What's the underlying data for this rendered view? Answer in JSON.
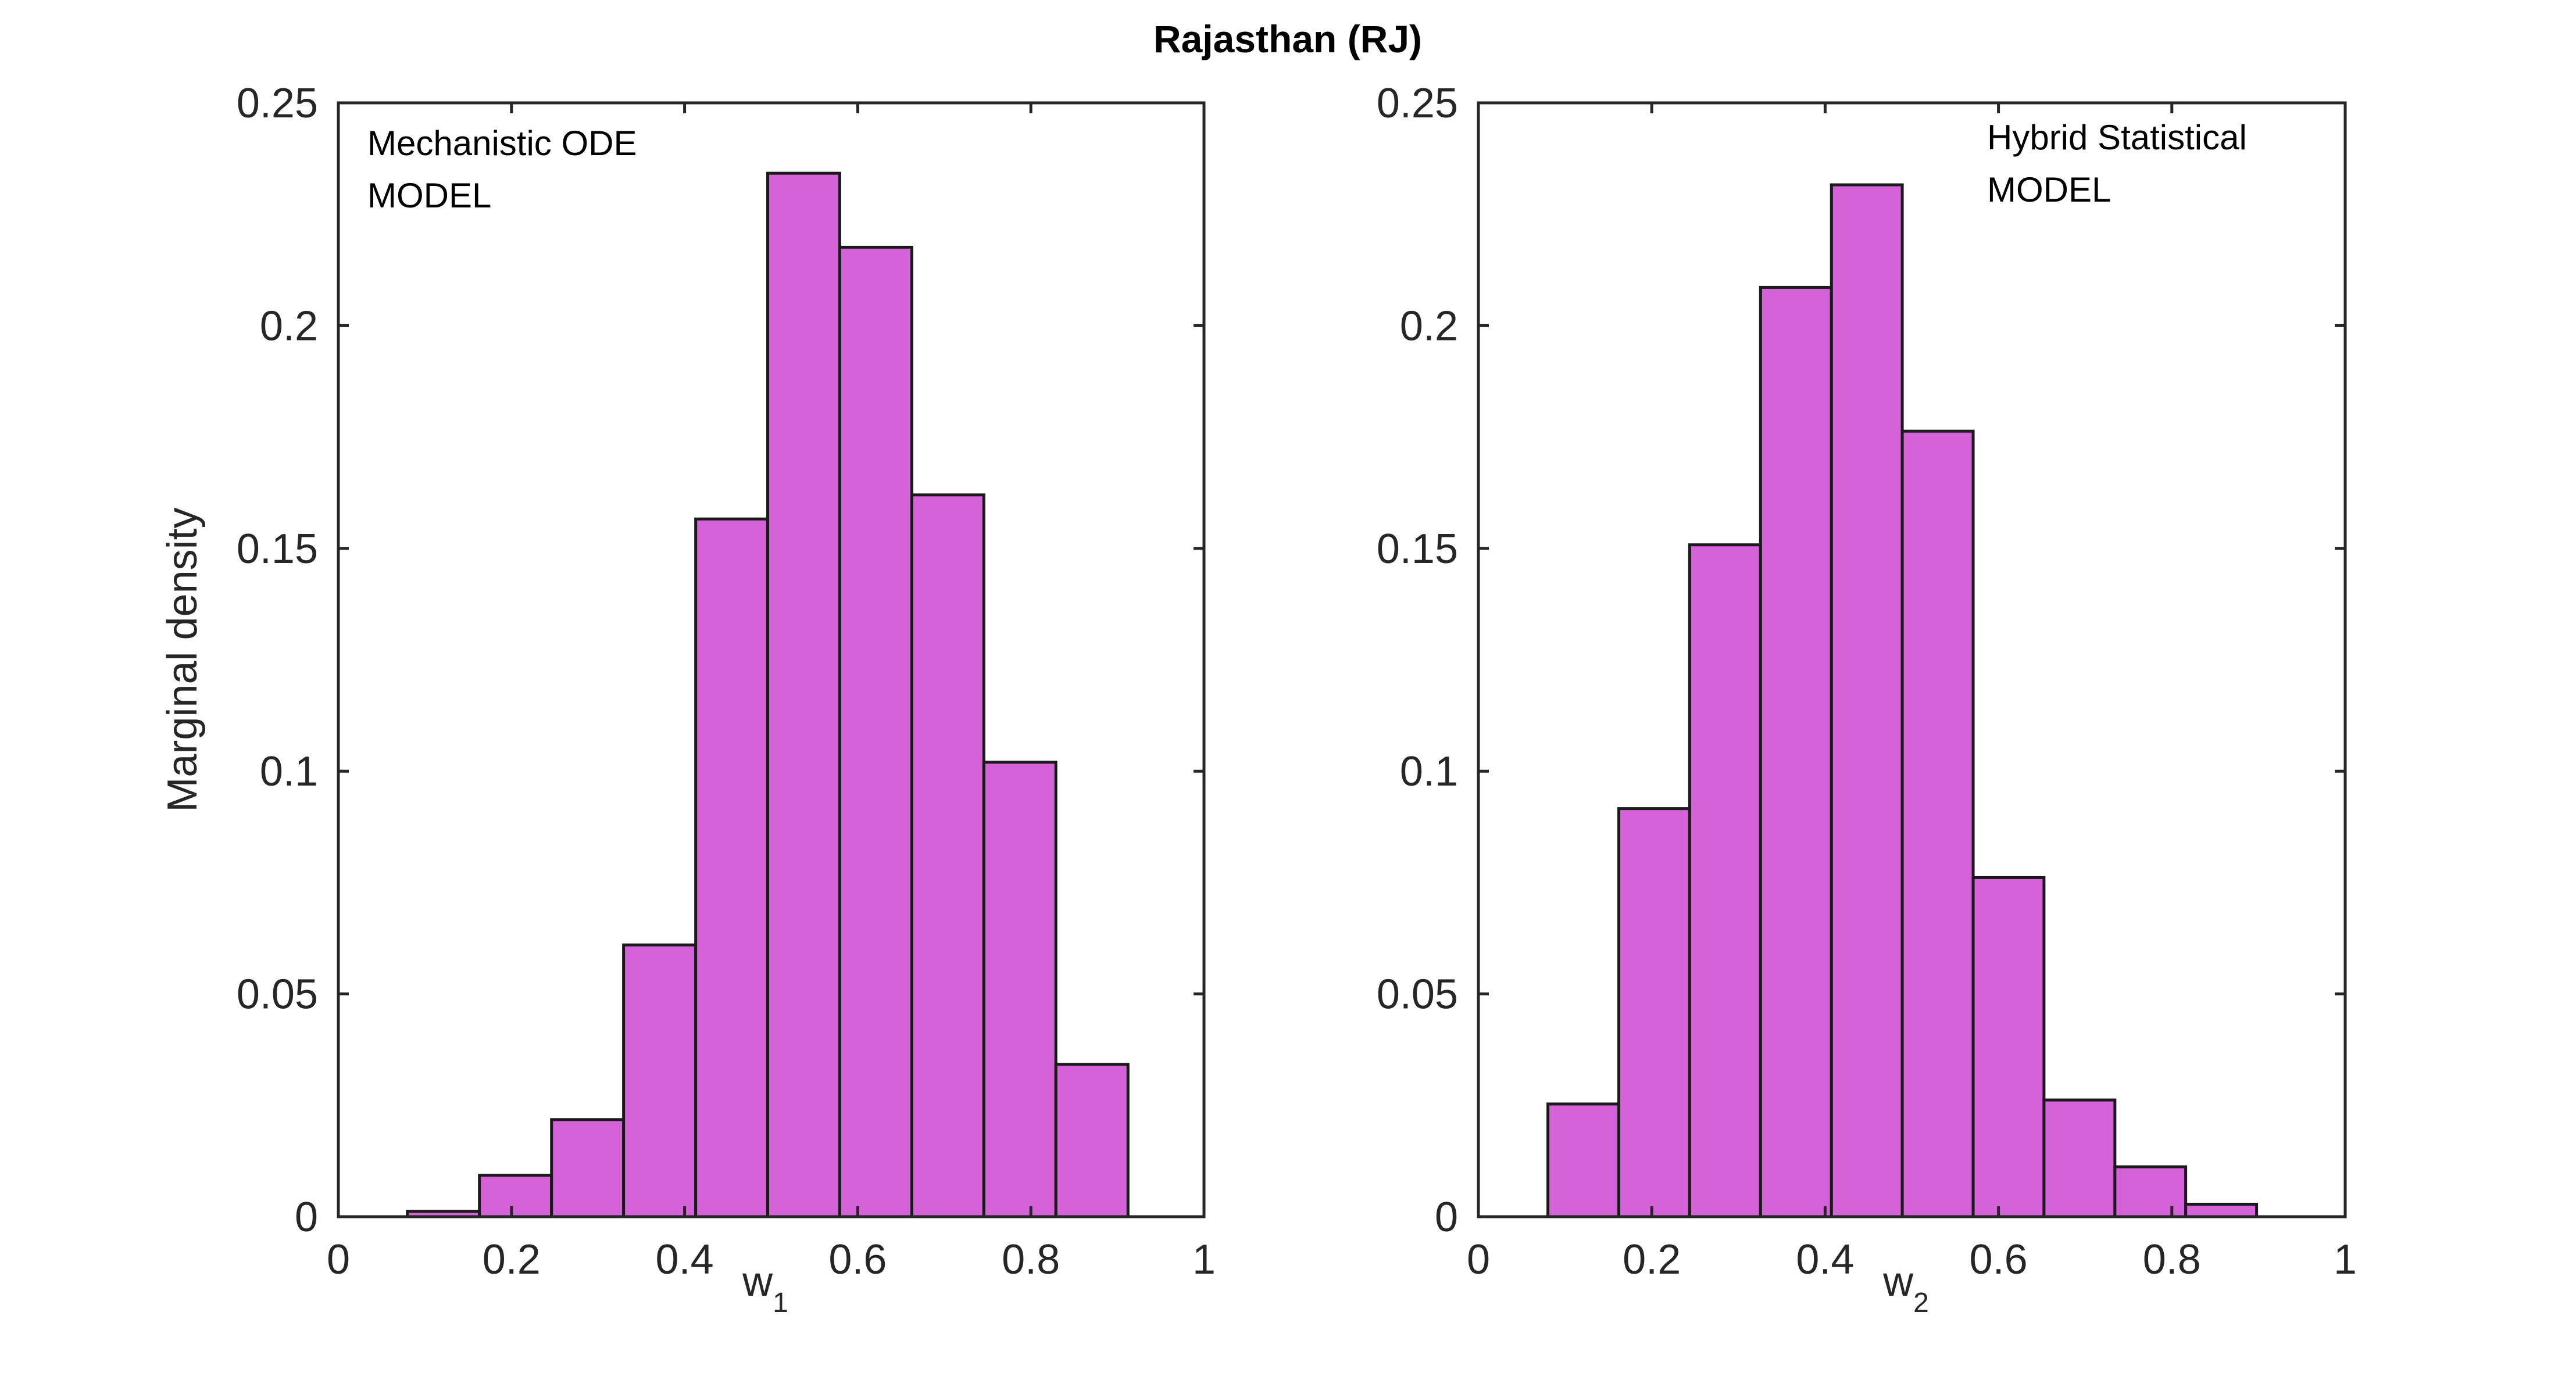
{
  "figure_title": "Rajasthan (RJ)",
  "colors": {
    "bar_fill": "#d662d9",
    "bar_edge": "#1a1a1a",
    "axis": "#262626"
  },
  "chart_data": [
    {
      "type": "bar",
      "id": "left",
      "annotation": [
        "Mechanistic ODE",
        "MODEL"
      ],
      "xlabel_main": "w",
      "xlabel_sub": "1",
      "ylabel": "Marginal density",
      "xlim": [
        0,
        1
      ],
      "ylim": [
        0,
        0.25
      ],
      "xticks": [
        0,
        0.2,
        0.4,
        0.6,
        0.8,
        1
      ],
      "xtick_labels": [
        "0",
        "0.2",
        "0.4",
        "0.6",
        "0.8",
        "1"
      ],
      "yticks": [
        0,
        0.05,
        0.1,
        0.15,
        0.2,
        0.25
      ],
      "ytick_labels": [
        "0",
        "0.05",
        "0.1",
        "0.15",
        "0.2",
        "0.25"
      ],
      "bin_edges": [
        0.0798,
        0.163,
        0.2463,
        0.3295,
        0.4128,
        0.496,
        0.5792,
        0.6625,
        0.7457,
        0.8289,
        0.9122
      ],
      "values": [
        0.0012,
        0.0093,
        0.0218,
        0.061,
        0.1566,
        0.2342,
        0.2176,
        0.162,
        0.102,
        0.0342
      ]
    },
    {
      "type": "bar",
      "id": "right",
      "annotation": [
        "Hybrid Statistical",
        "MODEL"
      ],
      "xlabel_main": "w",
      "xlabel_sub": "2",
      "ylabel": "",
      "xlim": [
        0,
        1
      ],
      "ylim": [
        0,
        0.25
      ],
      "xticks": [
        0,
        0.2,
        0.4,
        0.6,
        0.8,
        1
      ],
      "xtick_labels": [
        "0",
        "0.2",
        "0.4",
        "0.6",
        "0.8",
        "1"
      ],
      "yticks": [
        0,
        0.05,
        0.1,
        0.15,
        0.2,
        0.25
      ],
      "ytick_labels": [
        "0",
        "0.05",
        "0.1",
        "0.15",
        "0.2",
        "0.25"
      ],
      "bin_edges": [
        0.0802,
        0.162,
        0.2437,
        0.3255,
        0.4073,
        0.489,
        0.5708,
        0.6525,
        0.7343,
        0.816,
        0.8978
      ],
      "values": [
        0.0253,
        0.0916,
        0.1508,
        0.2086,
        0.2316,
        0.1763,
        0.0761,
        0.0262,
        0.0112,
        0.0028
      ]
    }
  ]
}
